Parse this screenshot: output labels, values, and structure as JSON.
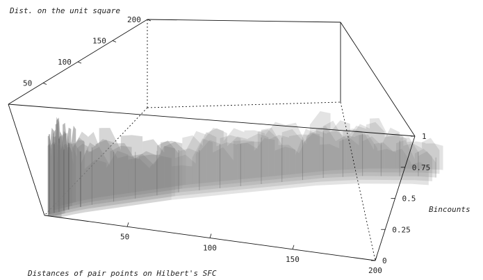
{
  "chart_data": {
    "type": "surface3d",
    "xlabel": "Distances of pair points on Hilbert's SFC",
    "ylabel": "Dist. on the unit square",
    "zlabel": "Bincounts",
    "x_ticks": [
      "50",
      "100",
      "150",
      "200"
    ],
    "y_ticks": [
      "50",
      "100",
      "150",
      "200"
    ],
    "z_ticks": [
      "0",
      "0.25",
      "0.5",
      "0.75",
      "1"
    ],
    "xlim": [
      0,
      200
    ],
    "ylim": [
      0,
      200
    ],
    "zlim": [
      0,
      1
    ],
    "surface_color": "#808080",
    "surface": [
      {
        "x": 2,
        "y": 3,
        "z": 0.72
      },
      {
        "x": 4,
        "y": 6,
        "z": 0.62
      },
      {
        "x": 6,
        "y": 9,
        "z": 0.66
      },
      {
        "x": 8,
        "y": 12,
        "z": 0.55
      },
      {
        "x": 10,
        "y": 15,
        "z": 0.6
      },
      {
        "x": 15,
        "y": 22,
        "z": 0.5
      },
      {
        "x": 20,
        "y": 28,
        "z": 0.52
      },
      {
        "x": 30,
        "y": 38,
        "z": 0.45
      },
      {
        "x": 40,
        "y": 48,
        "z": 0.42
      },
      {
        "x": 50,
        "y": 58,
        "z": 0.4
      },
      {
        "x": 60,
        "y": 68,
        "z": 0.38
      },
      {
        "x": 70,
        "y": 76,
        "z": 0.36
      },
      {
        "x": 80,
        "y": 84,
        "z": 0.4
      },
      {
        "x": 90,
        "y": 92,
        "z": 0.38
      },
      {
        "x": 100,
        "y": 100,
        "z": 0.42
      },
      {
        "x": 110,
        "y": 108,
        "z": 0.4
      },
      {
        "x": 120,
        "y": 116,
        "z": 0.36
      },
      {
        "x": 130,
        "y": 124,
        "z": 0.42
      },
      {
        "x": 140,
        "y": 130,
        "z": 0.34
      },
      {
        "x": 150,
        "y": 136,
        "z": 0.38
      },
      {
        "x": 160,
        "y": 140,
        "z": 0.3
      },
      {
        "x": 170,
        "y": 144,
        "z": 0.32
      },
      {
        "x": 180,
        "y": 148,
        "z": 0.22
      },
      {
        "x": 190,
        "y": 150,
        "z": 0.18
      }
    ]
  }
}
